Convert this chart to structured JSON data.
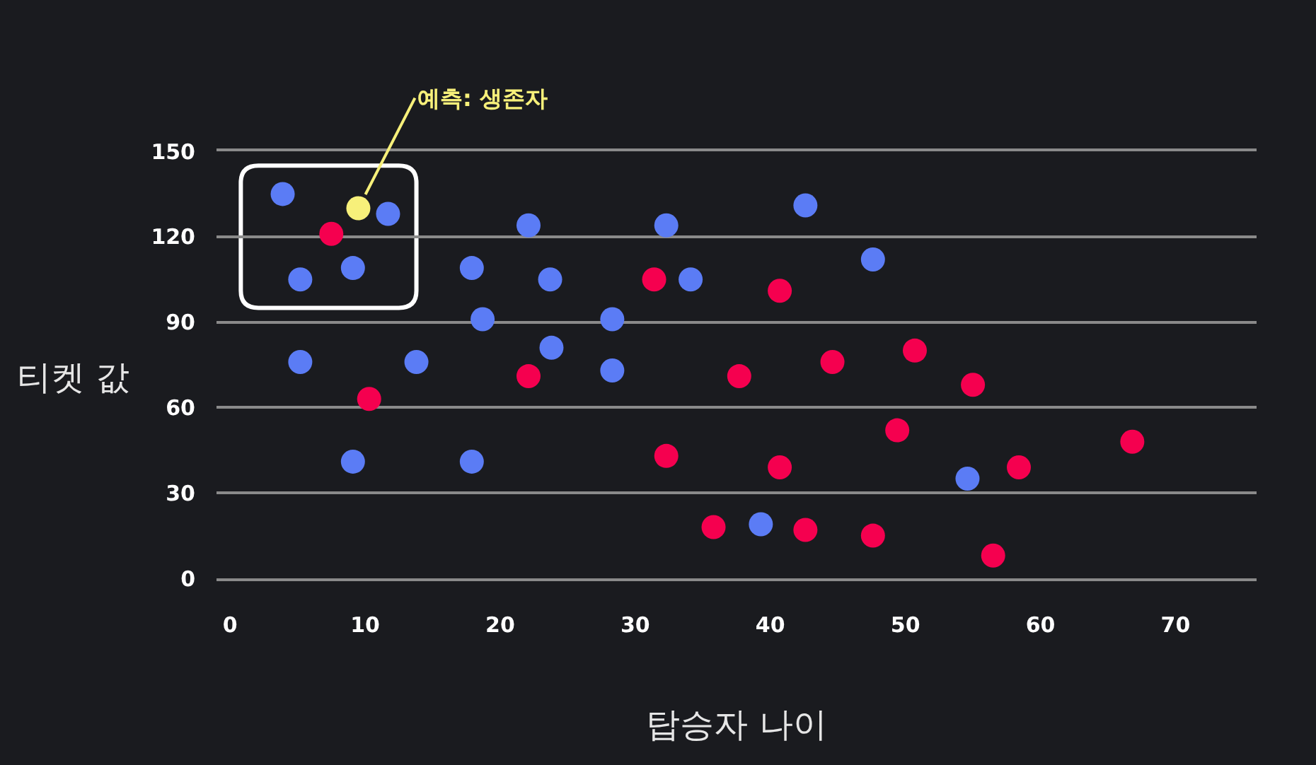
{
  "chart_data": {
    "type": "scatter",
    "xlabel": "탑승자 나이",
    "ylabel": "티켓 값",
    "xlim": [
      -1,
      76
    ],
    "xticks": [
      0,
      10,
      20,
      30,
      40,
      50,
      60,
      70
    ],
    "ylim": [
      0,
      150
    ],
    "yticks": [
      0,
      30,
      60,
      90,
      120,
      150
    ],
    "grid": "y",
    "marker": "circle",
    "series": [
      {
        "color": "#5b7cf5",
        "x": [
          3.9,
          5.2,
          5.2,
          9.1,
          9.1,
          11.7,
          13.8,
          17.9,
          17.9,
          18.7,
          22.1,
          23.7,
          23.8,
          28.3,
          28.3,
          32.3,
          34.1,
          39.3,
          42.6,
          47.6,
          54.6
        ],
        "values": [
          135,
          105,
          76,
          109,
          41,
          128,
          76,
          109,
          41,
          91,
          124,
          105,
          81,
          91,
          73,
          124,
          105,
          19,
          131,
          112,
          35
        ]
      },
      {
        "color": "#f5004f",
        "x": [
          7.5,
          10.3,
          22.1,
          31.4,
          32.3,
          35.8,
          37.7,
          40.7,
          40.7,
          42.6,
          44.6,
          47.6,
          49.4,
          50.7,
          55.0,
          56.5,
          58.4,
          66.8
        ],
        "values": [
          121,
          63,
          71,
          105,
          43,
          18,
          71,
          39,
          101,
          17,
          76,
          15,
          52,
          80,
          68,
          8,
          39,
          48
        ]
      },
      {
        "color": "#f7f07a",
        "x": [
          9.5
        ],
        "values": [
          130
        ]
      }
    ],
    "annotations": [
      {
        "text": "예측: 생존자",
        "x": 9.5,
        "y": 130
      }
    ]
  }
}
